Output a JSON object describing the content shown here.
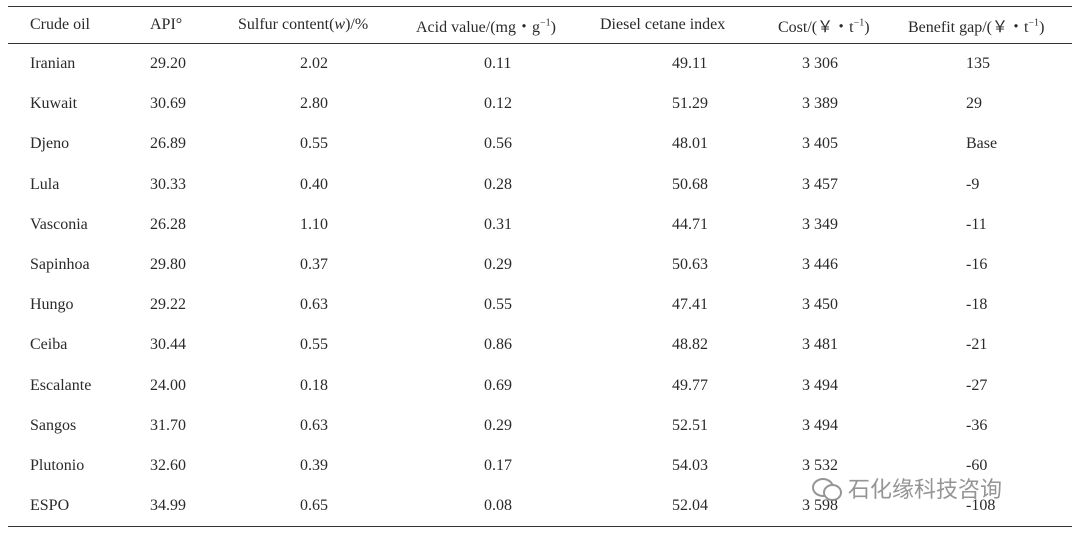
{
  "table": {
    "headers": [
      {
        "main": "Crude oil"
      },
      {
        "main": "API°"
      },
      {
        "pre": "Sulfur content(",
        "italic": "w",
        "post": ")/%"
      },
      {
        "main": "Acid value/(mg・g",
        "sup": "−1",
        "post": ")"
      },
      {
        "main": "Diesel cetane index"
      },
      {
        "main": "Cost/(￥・t",
        "sup": "−1",
        "post": ")"
      },
      {
        "main": "Benefit gap/(￥・t",
        "sup": "−1",
        "post": ")"
      }
    ],
    "rows": [
      [
        "Iranian",
        "29.20",
        "2.02",
        "0.11",
        "49.11",
        "3 306",
        "135"
      ],
      [
        "Kuwait",
        "30.69",
        "2.80",
        "0.12",
        "51.29",
        "3 389",
        "29"
      ],
      [
        "Djeno",
        "26.89",
        "0.55",
        "0.56",
        "48.01",
        "3 405",
        "Base"
      ],
      [
        "Lula",
        "30.33",
        "0.40",
        "0.28",
        "50.68",
        "3 457",
        "-9"
      ],
      [
        "Vasconia",
        "26.28",
        "1.10",
        "0.31",
        "44.71",
        "3 349",
        "-11"
      ],
      [
        "Sapinhoa",
        "29.80",
        "0.37",
        "0.29",
        "50.63",
        "3 446",
        "-16"
      ],
      [
        "Hungo",
        "29.22",
        "0.63",
        "0.55",
        "47.41",
        "3 450",
        "-18"
      ],
      [
        "Ceiba",
        "30.44",
        "0.55",
        "0.86",
        "48.82",
        "3 481",
        "-21"
      ],
      [
        "Escalante",
        "24.00",
        "0.18",
        "0.69",
        "49.77",
        "3 494",
        "-27"
      ],
      [
        "Sangos",
        "31.70",
        "0.63",
        "0.29",
        "52.51",
        "3 494",
        "-36"
      ],
      [
        "Plutonio",
        "32.60",
        "0.39",
        "0.17",
        "54.03",
        "3 532",
        "-60"
      ],
      [
        "ESPO",
        "34.99",
        "0.65",
        "0.08",
        "52.04",
        "3 598",
        "-108"
      ]
    ]
  },
  "watermark": {
    "text": "石化缘科技咨询",
    "icon": "wechat-icon"
  }
}
